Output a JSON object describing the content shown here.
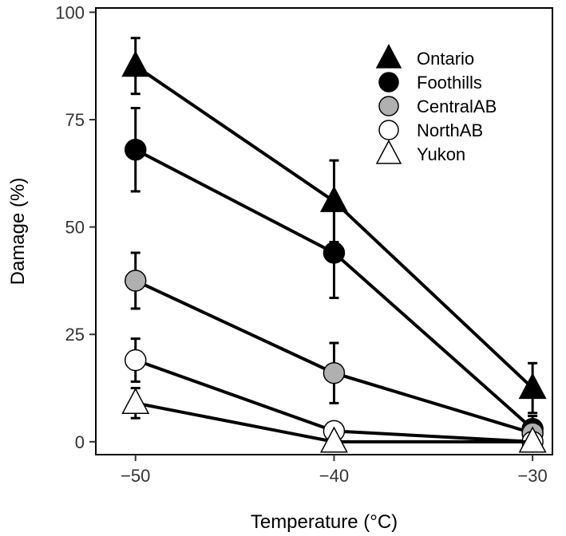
{
  "chart_data": {
    "type": "line",
    "xlabel": "Temperature (°C)",
    "ylabel": "Damage (%)",
    "xlim": [
      -52,
      -29
    ],
    "ylim": [
      -3,
      101
    ],
    "x_ticks": [
      -50,
      -40,
      -30
    ],
    "x_tick_labels": [
      "−50",
      "−40",
      "−30"
    ],
    "y_ticks": [
      0,
      25,
      50,
      75,
      100
    ],
    "y_tick_labels": [
      "0",
      "25",
      "50",
      "75",
      "100"
    ],
    "grid": false,
    "legend_position": "top-right",
    "x": [
      -50,
      -40,
      -30
    ],
    "series": [
      {
        "name": "Ontario",
        "marker": "triangle",
        "fill": "#000000",
        "values": [
          87.5,
          56,
          12.5
        ],
        "error": [
          6.5,
          9.5,
          5.8
        ]
      },
      {
        "name": "Foothills",
        "marker": "circle",
        "fill": "#000000",
        "values": [
          68,
          44,
          3
        ],
        "error": [
          9.7,
          10.5,
          3
        ]
      },
      {
        "name": "CentralAB",
        "marker": "circle",
        "fill": "#b0b0b0",
        "values": [
          37.5,
          16,
          2
        ],
        "error": [
          6.5,
          7,
          2
        ]
      },
      {
        "name": "NorthAB",
        "marker": "circle",
        "fill": "#ffffff",
        "values": [
          19,
          2.5,
          0
        ],
        "error": [
          5,
          0,
          0
        ]
      },
      {
        "name": "Yukon",
        "marker": "triangle",
        "fill": "#ffffff",
        "values": [
          9,
          0,
          0
        ],
        "error": [
          3.5,
          0,
          0
        ]
      }
    ]
  }
}
